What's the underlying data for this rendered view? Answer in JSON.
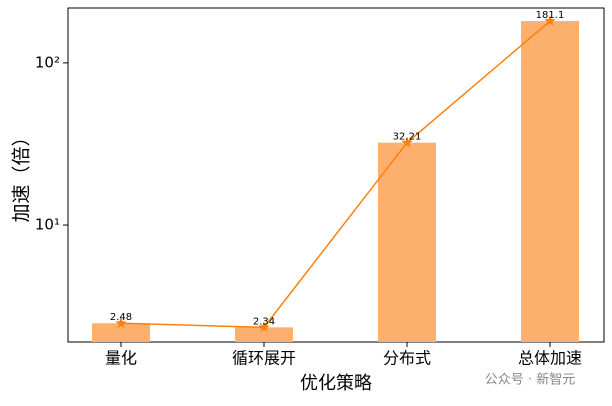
{
  "chart_data": {
    "type": "bar-line",
    "y_label": "加速（倍）",
    "x_label": "优化策略",
    "categories": [
      "量化",
      "循环展开",
      "分布式",
      "总体加速"
    ],
    "values": [
      2.48,
      2.34,
      32.21,
      181.1
    ],
    "bar_color": "#fdb06e",
    "line_color": "#ff7f0e",
    "log_scale": true,
    "ylim": [
      1.9,
      218
    ],
    "yticks": [
      {
        "value": 10,
        "label": "10¹"
      },
      {
        "value": 100,
        "label": "10²"
      }
    ],
    "watermark": "公众号 · 新智元"
  }
}
